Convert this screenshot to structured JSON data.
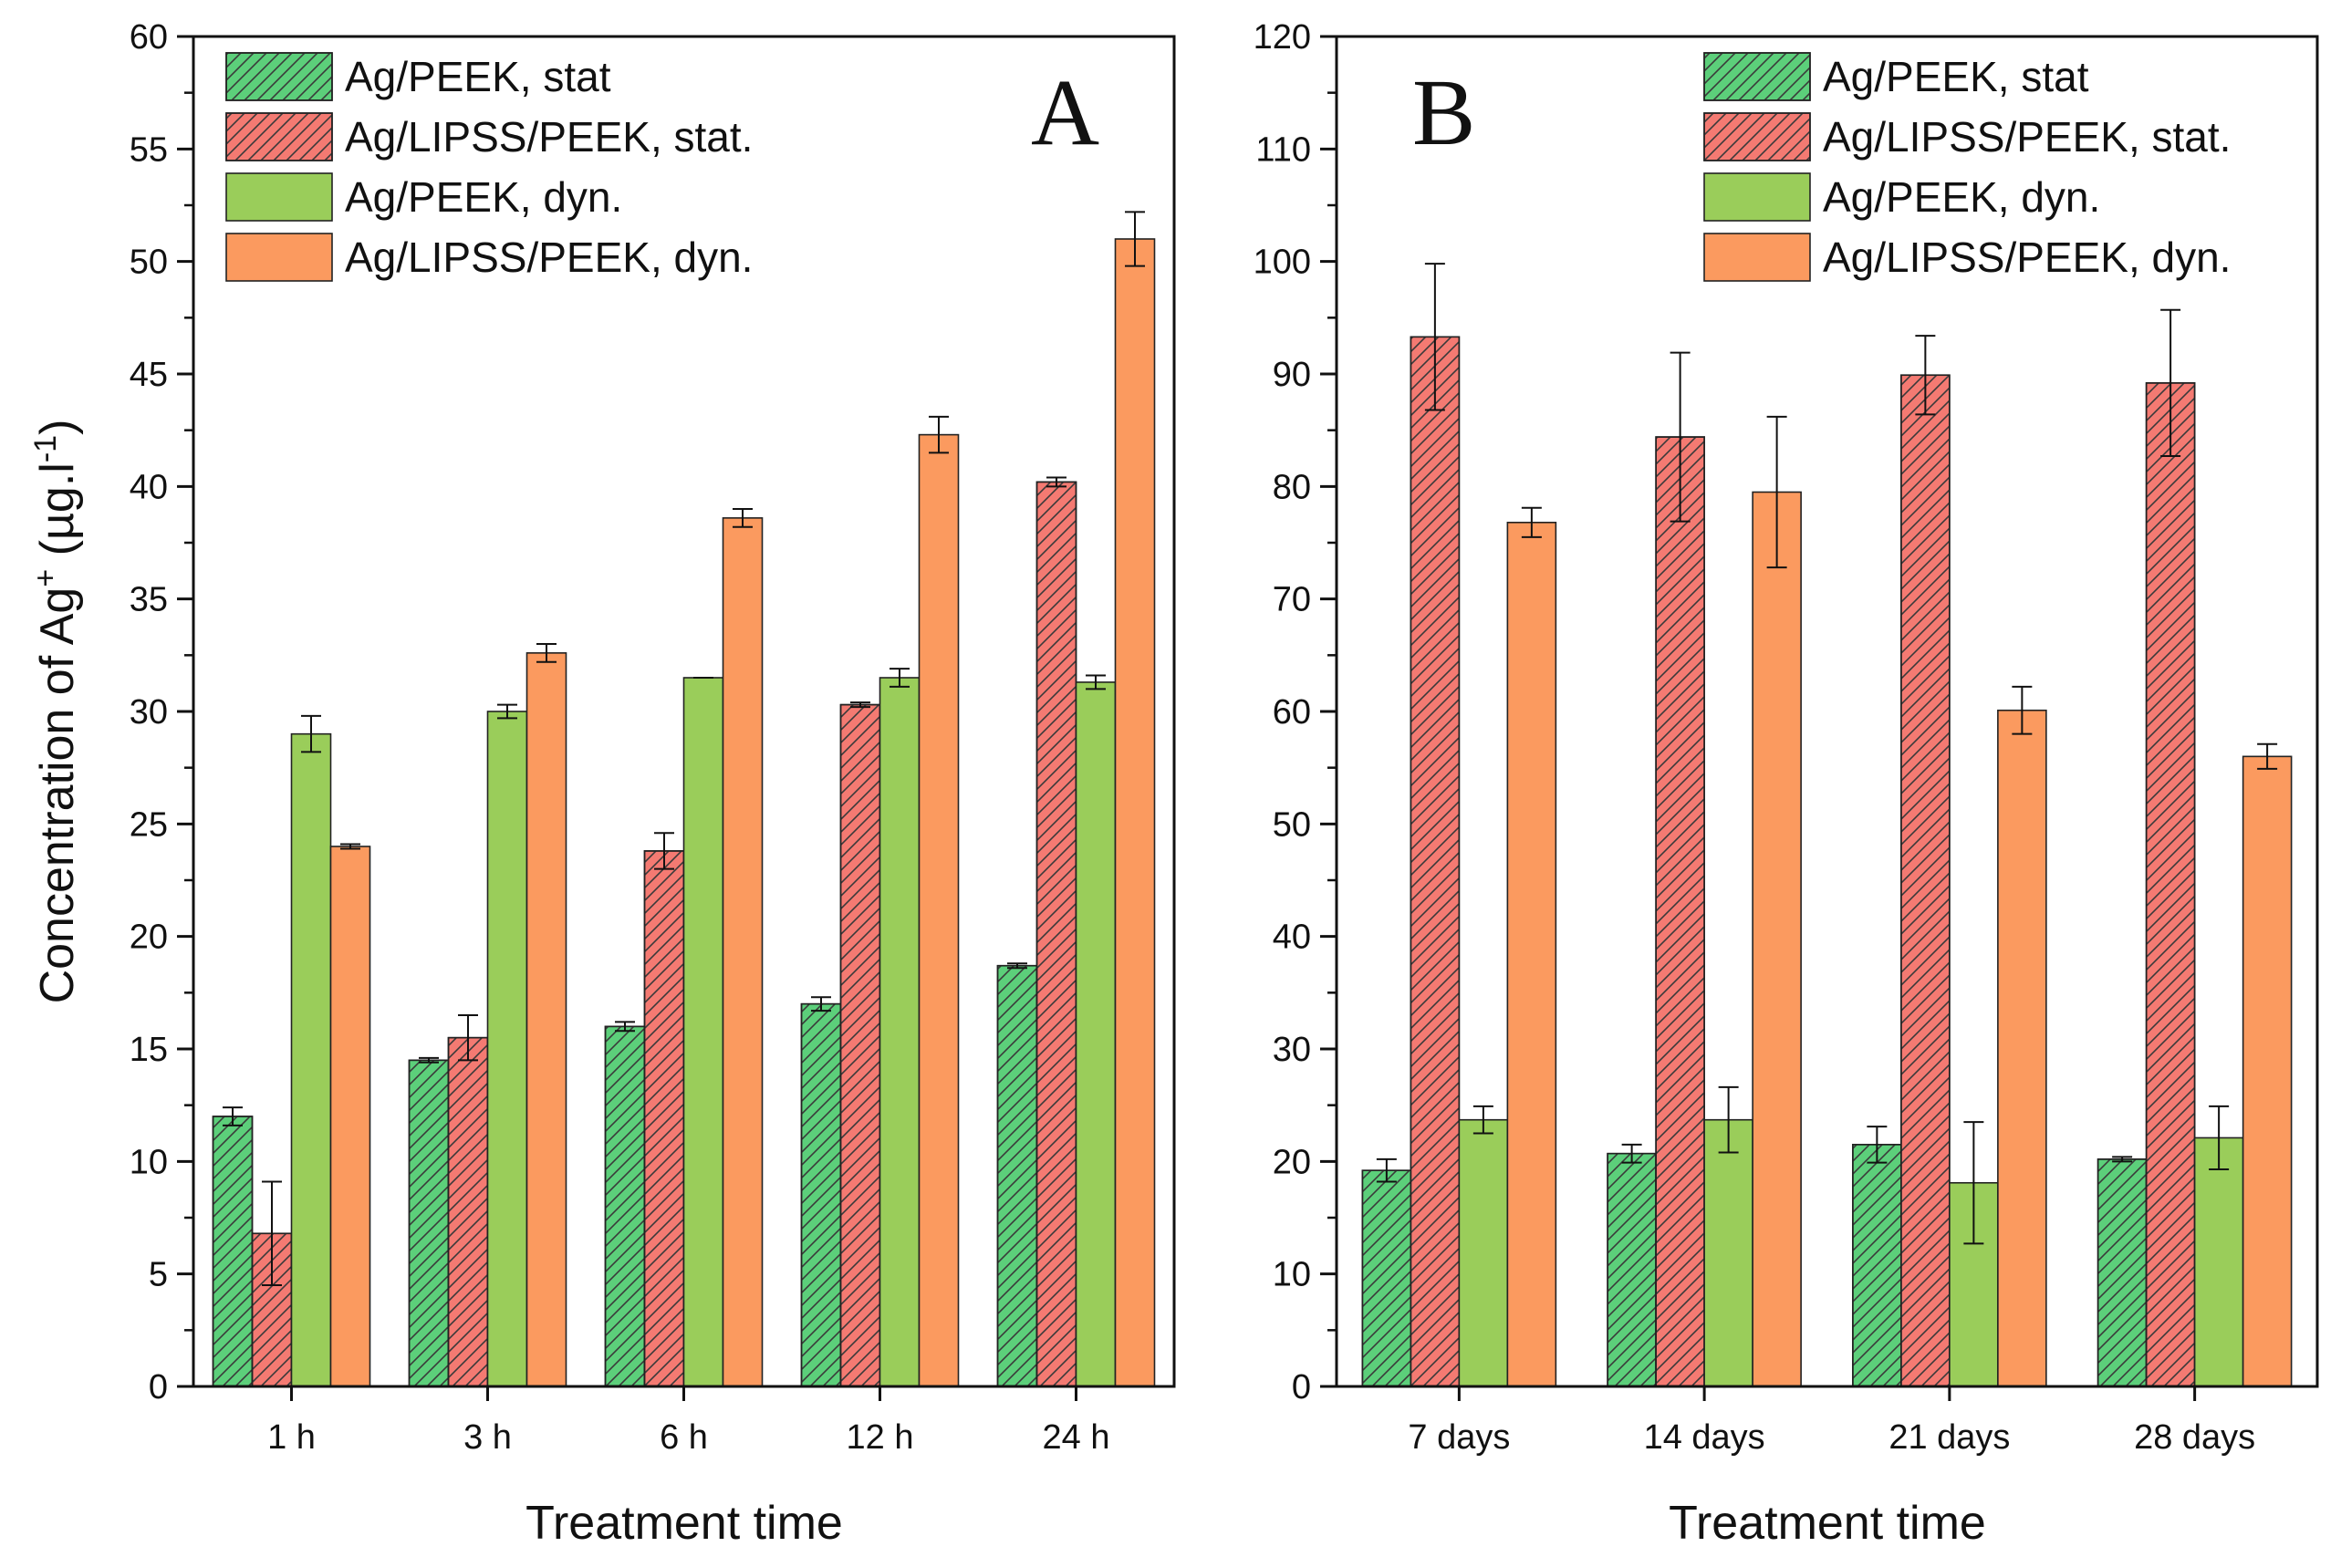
{
  "colors": {
    "stat_green": "#5ccf7a",
    "stat_red": "#f47a72",
    "dyn_green": "#9acd5a",
    "dyn_orange": "#fb9a5f",
    "hatch": "#3a3a3a",
    "axis": "#111111"
  },
  "chart_data": [
    {
      "type": "bar",
      "panel": "A",
      "xlabel": "Treatment time",
      "ylabel_main": "Concentration of Ag",
      "ylabel_sup": "+",
      "ylabel_unit_left": " (µg.l",
      "ylabel_unit_sup": "-1",
      "ylabel_unit_right": ")",
      "ylim": [
        0,
        60
      ],
      "ytick_step": 5,
      "yticks": [
        "0",
        "5",
        "10",
        "15",
        "20",
        "25",
        "30",
        "35",
        "40",
        "45",
        "50",
        "55",
        "60"
      ],
      "categories": [
        "1 h",
        "3 h",
        "6 h",
        "12 h",
        "24 h"
      ],
      "legend_position": "top-left",
      "series": [
        {
          "name": "Ag/PEEK, stat",
          "key": "stat_green",
          "hatched": true,
          "values": [
            12.0,
            14.5,
            16.0,
            17.0,
            18.7
          ],
          "errors": [
            0.4,
            0.1,
            0.2,
            0.3,
            0.1
          ]
        },
        {
          "name": "Ag/LIPSS/PEEK, stat.",
          "key": "stat_red",
          "hatched": true,
          "values": [
            6.8,
            15.5,
            23.8,
            30.3,
            40.2
          ],
          "errors": [
            2.3,
            1.0,
            0.8,
            0.1,
            0.2
          ]
        },
        {
          "name": "Ag/PEEK, dyn.",
          "key": "dyn_green",
          "hatched": false,
          "values": [
            29.0,
            30.0,
            31.5,
            31.5,
            31.3
          ],
          "errors": [
            0.8,
            0.3,
            0.0,
            0.4,
            0.3
          ]
        },
        {
          "name": "Ag/LIPSS/PEEK, dyn.",
          "key": "dyn_orange",
          "hatched": false,
          "values": [
            24.0,
            32.6,
            38.6,
            42.3,
            51.0
          ],
          "errors": [
            0.1,
            0.4,
            0.4,
            0.8,
            1.2
          ]
        }
      ]
    },
    {
      "type": "bar",
      "panel": "B",
      "xlabel": "Treatment time",
      "ylim": [
        0,
        120
      ],
      "ytick_step": 10,
      "yticks": [
        "0",
        "10",
        "20",
        "30",
        "40",
        "50",
        "60",
        "70",
        "80",
        "90",
        "100",
        "110",
        "120"
      ],
      "categories": [
        "7 days",
        "14 days",
        "21 days",
        "28 days"
      ],
      "legend_position": "top-right",
      "series": [
        {
          "name": "Ag/PEEK, stat",
          "key": "stat_green",
          "hatched": true,
          "values": [
            19.2,
            20.7,
            21.5,
            20.2
          ],
          "errors": [
            1.0,
            0.8,
            1.6,
            0.2
          ]
        },
        {
          "name": "Ag/LIPSS/PEEK, stat.",
          "key": "stat_red",
          "hatched": true,
          "values": [
            93.3,
            84.4,
            89.9,
            89.2
          ],
          "errors": [
            6.5,
            7.5,
            3.5,
            6.5
          ]
        },
        {
          "name": "Ag/PEEK, dyn.",
          "key": "dyn_green",
          "hatched": false,
          "values": [
            23.7,
            23.7,
            18.1,
            22.1
          ],
          "errors": [
            1.2,
            2.9,
            5.4,
            2.8
          ]
        },
        {
          "name": "Ag/LIPSS/PEEK, dyn.",
          "key": "dyn_orange",
          "hatched": false,
          "values": [
            76.8,
            79.5,
            60.1,
            56.0
          ],
          "errors": [
            1.3,
            6.7,
            2.1,
            1.1
          ]
        }
      ]
    }
  ]
}
